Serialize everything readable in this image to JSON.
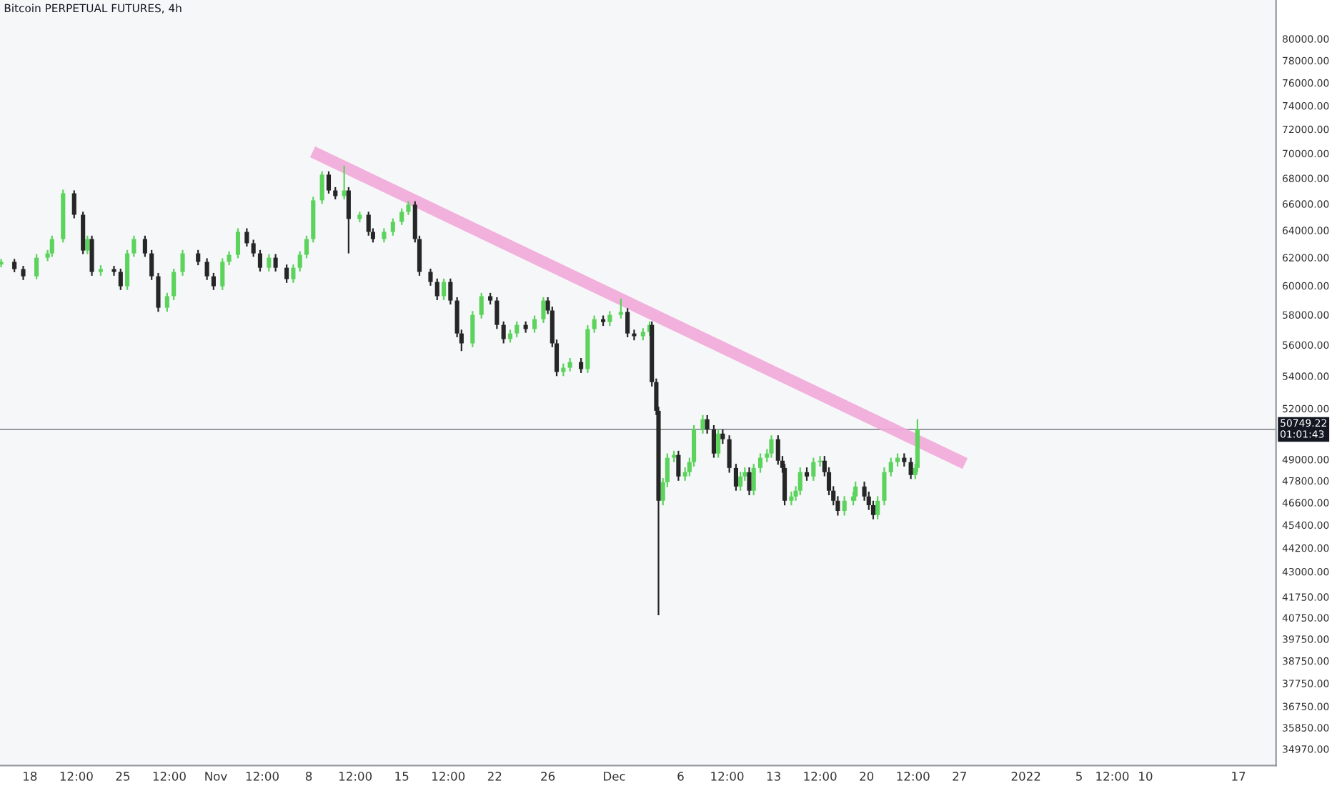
{
  "chart_data": {
    "type": "candlestick",
    "title": "Bitcoin PERPETUAL FUTURES, 4h",
    "log": true,
    "grid": false,
    "tick_labels": true,
    "xlim": [
      "2021-10-15T18:00",
      "2022-01-19T20:00"
    ],
    "xticks": [
      {
        "value": "2021-10-18",
        "label": "18"
      },
      {
        "value": "2021-10-21T12:00",
        "label": "12:00"
      },
      {
        "value": "2021-10-25",
        "label": "25"
      },
      {
        "value": "2021-10-28T12:00",
        "label": "12:00"
      },
      {
        "value": "2021-11-01",
        "label": "Nov"
      },
      {
        "value": "2021-11-04T12:00",
        "label": "12:00"
      },
      {
        "value": "2021-11-08",
        "label": "8"
      },
      {
        "value": "2021-11-11T12:00",
        "label": "12:00"
      },
      {
        "value": "2021-11-15",
        "label": "15"
      },
      {
        "value": "2021-11-18T12:00",
        "label": "12:00"
      },
      {
        "value": "2021-11-22",
        "label": "22"
      },
      {
        "value": "2021-11-26",
        "label": "26"
      },
      {
        "value": "2021-12-01",
        "label": "Dec"
      },
      {
        "value": "2021-12-06",
        "label": "6"
      },
      {
        "value": "2021-12-09T12:00",
        "label": "12:00"
      },
      {
        "value": "2021-12-13",
        "label": "13"
      },
      {
        "value": "2021-12-16T12:00",
        "label": "12:00"
      },
      {
        "value": "2021-12-20",
        "label": "20"
      },
      {
        "value": "2021-12-23T12:00",
        "label": "12:00"
      },
      {
        "value": "2021-12-27",
        "label": "27"
      },
      {
        "value": "2022-01-01",
        "label": "2022"
      },
      {
        "value": "2022-01-05",
        "label": "5"
      },
      {
        "value": "2022-01-07T12:00",
        "label": "12:00"
      },
      {
        "value": "2022-01-10",
        "label": "10"
      },
      {
        "value": "2022-01-17",
        "label": "17"
      }
    ],
    "ylim": [
      34300,
      83700
    ],
    "yticks": [
      {
        "value": 80000,
        "label": "80000.00"
      },
      {
        "value": 78000,
        "label": "78000.00"
      },
      {
        "value": 76000,
        "label": "76000.00"
      },
      {
        "value": 74000,
        "label": "74000.00"
      },
      {
        "value": 72000,
        "label": "72000.00"
      },
      {
        "value": 70000,
        "label": "70000.00"
      },
      {
        "value": 68000,
        "label": "68000.00"
      },
      {
        "value": 66000,
        "label": "66000.00"
      },
      {
        "value": 64000,
        "label": "64000.00"
      },
      {
        "value": 62000,
        "label": "62000.00"
      },
      {
        "value": 60000,
        "label": "60000.00"
      },
      {
        "value": 58000,
        "label": "58000.00"
      },
      {
        "value": 56000,
        "label": "56000.00"
      },
      {
        "value": 54000,
        "label": "54000.00"
      },
      {
        "value": 52000,
        "label": "52000.00"
      },
      {
        "value": 49000,
        "label": "49000.00"
      },
      {
        "value": 47800,
        "label": "47800.00"
      },
      {
        "value": 46600,
        "label": "46600.00"
      },
      {
        "value": 45400,
        "label": "45400.00"
      },
      {
        "value": 44200,
        "label": "44200.00"
      },
      {
        "value": 43000,
        "label": "43000.00"
      },
      {
        "value": 41750,
        "label": "41750.00"
      },
      {
        "value": 40750,
        "label": "40750.00"
      },
      {
        "value": 39750,
        "label": "39750.00"
      },
      {
        "value": 38750,
        "label": "38750.00"
      },
      {
        "value": 37750,
        "label": "37750.00"
      },
      {
        "value": 36750,
        "label": "36750.00"
      },
      {
        "value": 35850,
        "label": "35850.00"
      },
      {
        "value": 34970,
        "label": "34970.00"
      }
    ],
    "ref_lines": [
      {
        "axis": "y",
        "value": 50749.22,
        "label": "50749.22\n01:01:43",
        "color": "#9598a1"
      }
    ],
    "series": [
      {
        "color": "#5cd35c",
        "x": [
          "2021-10-15T20:00",
          "2021-10-18T12:00",
          "2021-10-19T08:00",
          "2021-10-19T16:00",
          "2021-10-20T12:00",
          "2021-10-22T08:00",
          "2021-10-23T08:00",
          "2021-10-25T08:00",
          "2021-10-25T20:00",
          "2021-10-28T08:00",
          "2021-10-28T20:00",
          "2021-10-29T12:00",
          "2021-11-01T12:00",
          "2021-11-02T00:00",
          "2021-11-02T16:00",
          "2021-11-05T00:00",
          "2021-11-06T20:00",
          "2021-11-07T08:00",
          "2021-11-07T20:00",
          "2021-11-08T08:00",
          "2021-11-09T00:00",
          "2021-11-10T16:00",
          "2021-11-11T20:00",
          "2021-11-13T16:00",
          "2021-11-14T08:00",
          "2021-11-15T00:00",
          "2021-11-15T12:00",
          "2021-11-18T04:00",
          "2021-11-20T08:00",
          "2021-11-21T00:00",
          "2021-11-23T04:00",
          "2021-11-23T16:00",
          "2021-11-25T00:00",
          "2021-11-25T16:00",
          "2021-11-27T04:00",
          "2021-11-27T16:00",
          "2021-11-29T00:00",
          "2021-11-29T12:00",
          "2021-11-30T16:00",
          "2021-12-01T12:00",
          "2021-12-03T04:00",
          "2021-12-03T16:00",
          "2021-12-04T16:00",
          "2021-12-05T00:00",
          "2021-12-05T12:00",
          "2021-12-06T08:00",
          "2021-12-06T16:00",
          "2021-12-07T00:00",
          "2021-12-07T16:00",
          "2021-12-08T20:00",
          "2021-12-10T12:00",
          "2021-12-10T20:00",
          "2021-12-11T12:00",
          "2021-12-12T00:00",
          "2021-12-12T12:00",
          "2021-12-12T20:00",
          "2021-12-14T08:00",
          "2021-12-14T16:00",
          "2021-12-15T00:00",
          "2021-12-16T00:00",
          "2021-12-16T12:00",
          "2021-12-18T08:00",
          "2021-12-19T00:00",
          "2021-12-19T04:00",
          "2021-12-20T20:00",
          "2021-12-21T08:00",
          "2021-12-21T20:00",
          "2021-12-22T08:00",
          "2021-12-23T16:00",
          "2021-12-23T20:00"
        ],
        "ohlc": [
          [
            61500,
            61900,
            61300,
            61690
          ],
          [
            60660,
            62250,
            60450,
            61990
          ],
          [
            61990,
            62550,
            61750,
            62300
          ],
          [
            62300,
            63600,
            62050,
            63350
          ],
          [
            63350,
            67100,
            63100,
            66820
          ],
          [
            62510,
            63600,
            62250,
            63350
          ],
          [
            60970,
            61450,
            60700,
            61170
          ],
          [
            59960,
            62550,
            59700,
            62300
          ],
          [
            62300,
            63600,
            62050,
            63350
          ],
          [
            58480,
            59500,
            58200,
            59270
          ],
          [
            59270,
            61200,
            59000,
            60970
          ],
          [
            60970,
            62550,
            60700,
            62300
          ],
          [
            59960,
            61950,
            59700,
            61690
          ],
          [
            61690,
            62450,
            61450,
            62200
          ],
          [
            62200,
            64150,
            61950,
            63880
          ],
          [
            61270,
            62250,
            61000,
            61990
          ],
          [
            60460,
            61500,
            60200,
            61270
          ],
          [
            61270,
            62450,
            61000,
            62200
          ],
          [
            62200,
            63600,
            61950,
            63350
          ],
          [
            63350,
            66550,
            63100,
            66270
          ],
          [
            66270,
            68550,
            66000,
            68290
          ],
          [
            66600,
            69000,
            66350,
            67040
          ],
          [
            64850,
            65400,
            64600,
            65170
          ],
          [
            63350,
            64150,
            63100,
            63880
          ],
          [
            63880,
            64900,
            63600,
            64630
          ],
          [
            64630,
            65650,
            64400,
            65390
          ],
          [
            65390,
            66200,
            65150,
            65940
          ],
          [
            59270,
            60500,
            59000,
            60260
          ],
          [
            56100,
            58250,
            55850,
            57990
          ],
          [
            57990,
            59500,
            57750,
            59270
          ],
          [
            56380,
            57000,
            56150,
            56750
          ],
          [
            56750,
            57550,
            56500,
            57320
          ],
          [
            57040,
            57950,
            56800,
            57700
          ],
          [
            57700,
            59200,
            57450,
            58970
          ],
          [
            54260,
            54800,
            54000,
            54530
          ],
          [
            54530,
            55150,
            54300,
            54890
          ],
          [
            54440,
            57300,
            54200,
            57040
          ],
          [
            57040,
            57950,
            56800,
            57700
          ],
          [
            57510,
            58250,
            57250,
            57990
          ],
          [
            57990,
            59100,
            57750,
            58190
          ],
          [
            56570,
            57100,
            56300,
            56850
          ],
          [
            56850,
            57550,
            56600,
            57320
          ],
          [
            46700,
            47950,
            46450,
            47720
          ],
          [
            47720,
            49350,
            47450,
            49100
          ],
          [
            49100,
            49500,
            48850,
            49260
          ],
          [
            48040,
            48550,
            47800,
            48280
          ],
          [
            48280,
            49100,
            48050,
            48850
          ],
          [
            48850,
            51000,
            48600,
            50750
          ],
          [
            50750,
            51600,
            50500,
            51350
          ],
          [
            49340,
            50750,
            49100,
            50500
          ],
          [
            47480,
            48300,
            47250,
            48040
          ],
          [
            48040,
            48550,
            47800,
            48280
          ],
          [
            47250,
            48750,
            47000,
            48520
          ],
          [
            48520,
            49350,
            48250,
            49100
          ],
          [
            49100,
            49600,
            48850,
            49340
          ],
          [
            49340,
            50400,
            49100,
            50170
          ],
          [
            46700,
            47200,
            46450,
            46930
          ],
          [
            46930,
            47500,
            46700,
            47250
          ],
          [
            47250,
            48550,
            47000,
            48280
          ],
          [
            48040,
            49100,
            47800,
            48850
          ],
          [
            48850,
            49200,
            48600,
            48930
          ],
          [
            46150,
            46950,
            45900,
            46700
          ],
          [
            46700,
            47200,
            46450,
            46930
          ],
          [
            46930,
            47750,
            46700,
            47480
          ],
          [
            45930,
            46950,
            45700,
            46700
          ],
          [
            46700,
            48550,
            46450,
            48280
          ],
          [
            48280,
            49100,
            48050,
            48850
          ],
          [
            48850,
            49350,
            48600,
            49100
          ],
          [
            48120,
            48750,
            47900,
            48520
          ],
          [
            48520,
            51350,
            48300,
            50750
          ]
        ]
      },
      {
        "color": "#262626",
        "x": [
          "2021-10-16T20:00",
          "2021-10-17T12:00",
          "2021-10-21T08:00",
          "2021-10-22T00:00",
          "2021-10-22T16:00",
          "2021-10-24T08:00",
          "2021-10-24T20:00",
          "2021-10-26T16:00",
          "2021-10-27T04:00",
          "2021-10-27T16:00",
          "2021-10-30T16:00",
          "2021-10-31T08:00",
          "2021-10-31T20:00",
          "2021-11-03T08:00",
          "2021-11-03T20:00",
          "2021-11-04T08:00",
          "2021-11-05T12:00",
          "2021-11-06T08:00",
          "2021-11-09T12:00",
          "2021-11-10T00:00",
          "2021-11-11T00:00",
          "2021-11-12T12:00",
          "2021-11-12T20:00",
          "2021-11-16T00:00",
          "2021-11-16T08:00",
          "2021-11-17T04:00",
          "2021-11-17T16:00",
          "2021-11-18T16:00",
          "2021-11-19T04:00",
          "2021-11-19T12:00",
          "2021-11-21T16:00",
          "2021-11-22T04:00",
          "2021-11-22T16:00",
          "2021-11-24T08:00",
          "2021-11-26T00:00",
          "2021-11-26T08:00",
          "2021-11-26T16:00",
          "2021-11-28T12:00",
          "2021-11-30T04:00",
          "2021-12-02T00:00",
          "2021-12-02T12:00",
          "2021-12-03T20:00",
          "2021-12-04T04:00",
          "2021-12-04T08:00",
          "2021-12-05T20:00",
          "2021-12-08T00:00",
          "2021-12-08T12:00",
          "2021-12-09T04:00",
          "2021-12-09T16:00",
          "2021-12-10T04:00",
          "2021-12-11T04:00",
          "2021-12-13T08:00",
          "2021-12-13T16:00",
          "2021-12-13T20:00",
          "2021-12-15T12:00",
          "2021-12-16T20:00",
          "2021-12-17T04:00",
          "2021-12-17T12:00",
          "2021-12-17T20:00",
          "2021-12-19T20:00",
          "2021-12-20T04:00",
          "2021-12-20T12:00",
          "2021-12-22T20:00",
          "2021-12-23T08:00"
        ],
        "ohlc": [
          [
            61690,
            61900,
            60950,
            61170
          ],
          [
            61170,
            61400,
            60400,
            60660
          ],
          [
            66820,
            67050,
            64900,
            65170
          ],
          [
            65170,
            65400,
            62250,
            62510
          ],
          [
            63350,
            63600,
            60700,
            60970
          ],
          [
            61170,
            61400,
            60700,
            60970
          ],
          [
            60970,
            61200,
            59700,
            59960
          ],
          [
            63350,
            63600,
            62050,
            62300
          ],
          [
            62300,
            62550,
            60400,
            60660
          ],
          [
            60660,
            60900,
            58200,
            58480
          ],
          [
            62300,
            62550,
            61450,
            61690
          ],
          [
            61690,
            61950,
            60400,
            60660
          ],
          [
            60660,
            60900,
            59700,
            59960
          ],
          [
            63880,
            64150,
            62800,
            63040
          ],
          [
            63040,
            63300,
            62050,
            62300
          ],
          [
            62300,
            62550,
            61000,
            61270
          ],
          [
            61990,
            62250,
            61000,
            61270
          ],
          [
            61270,
            61500,
            60200,
            60460
          ],
          [
            68290,
            68550,
            66800,
            67040
          ],
          [
            67040,
            67300,
            66350,
            66600
          ],
          [
            67040,
            67300,
            62300,
            64850
          ],
          [
            65170,
            65400,
            63600,
            63880
          ],
          [
            63880,
            64150,
            63100,
            63350
          ],
          [
            65940,
            66200,
            63100,
            63350
          ],
          [
            63350,
            63600,
            60700,
            60970
          ],
          [
            60970,
            61200,
            60000,
            60260
          ],
          [
            60260,
            60500,
            59000,
            59270
          ],
          [
            60260,
            60500,
            58700,
            58970
          ],
          [
            58970,
            59200,
            56500,
            56750
          ],
          [
            56750,
            57000,
            55600,
            56100
          ],
          [
            59270,
            59500,
            58700,
            58970
          ],
          [
            58970,
            59200,
            57050,
            57320
          ],
          [
            57320,
            57550,
            56100,
            56380
          ],
          [
            57320,
            57550,
            56800,
            57040
          ],
          [
            58970,
            59200,
            58050,
            58290
          ],
          [
            58290,
            58550,
            55850,
            56100
          ],
          [
            56100,
            56350,
            54000,
            54260
          ],
          [
            54890,
            55150,
            54200,
            54440
          ],
          [
            57700,
            57950,
            57250,
            57510
          ],
          [
            58190,
            58450,
            56500,
            56750
          ],
          [
            56750,
            57000,
            56300,
            56570
          ],
          [
            57320,
            57550,
            53350,
            53620
          ],
          [
            53620,
            53850,
            51600,
            51860
          ],
          [
            51860,
            52100,
            40870,
            46700
          ],
          [
            49260,
            49500,
            47800,
            48040
          ],
          [
            51350,
            51600,
            50500,
            50750
          ],
          [
            50750,
            51000,
            49100,
            49340
          ],
          [
            50500,
            50750,
            49900,
            50170
          ],
          [
            50170,
            50400,
            48250,
            48520
          ],
          [
            48520,
            48750,
            47250,
            47480
          ],
          [
            48280,
            48550,
            47000,
            47250
          ],
          [
            50170,
            50400,
            48700,
            48930
          ],
          [
            48930,
            49200,
            48250,
            48520
          ],
          [
            48520,
            48750,
            46450,
            46700
          ],
          [
            48280,
            48550,
            47800,
            48040
          ],
          [
            48930,
            49200,
            48050,
            48280
          ],
          [
            48280,
            48550,
            47000,
            47250
          ],
          [
            47250,
            47500,
            46450,
            46700
          ],
          [
            46700,
            46950,
            45900,
            46150
          ],
          [
            47480,
            47750,
            46700,
            46930
          ],
          [
            46930,
            47200,
            46200,
            46460
          ],
          [
            46460,
            46700,
            45700,
            45930
          ],
          [
            49100,
            49350,
            48600,
            48850
          ],
          [
            48850,
            49100,
            47900,
            48120
          ]
        ]
      },
      {
        "type": "line",
        "color": "#f2a7d8",
        "x": [
          "2021-11-08T07:00",
          "2021-12-27T10:00"
        ],
        "values": [
          70130,
          48770
        ]
      }
    ]
  }
}
